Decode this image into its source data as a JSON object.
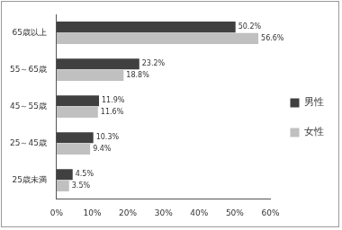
{
  "chart_data": {
    "type": "bar",
    "orientation": "horizontal",
    "categories": [
      "65歳以上",
      "55～65歳",
      "45～55歳",
      "25～45歳",
      "25歳未満"
    ],
    "series": [
      {
        "name": "男性",
        "color": "#404040",
        "values": [
          50.2,
          23.2,
          11.9,
          10.3,
          4.5
        ],
        "value_labels": [
          "50.2%",
          "23.2%",
          "11.9%",
          "10.3%",
          "4.5%"
        ]
      },
      {
        "name": "女性",
        "color": "#c0c0c0",
        "values": [
          56.6,
          18.8,
          11.6,
          9.4,
          3.5
        ],
        "value_labels": [
          "56.6%",
          "18.8%",
          "11.6%",
          "9.4%",
          "3.5%"
        ]
      }
    ],
    "xlim": [
      0,
      60
    ],
    "xticks": [
      {
        "value": 0,
        "label": "0%"
      },
      {
        "value": 10,
        "label": "10%"
      },
      {
        "value": 20,
        "label": "20%"
      },
      {
        "value": 30,
        "label": "30%"
      },
      {
        "value": 40,
        "label": "40%"
      },
      {
        "value": 50,
        "label": "50%"
      },
      {
        "value": 60,
        "label": "60%"
      }
    ],
    "grid": false,
    "legend": "right",
    "data_labels": true
  }
}
